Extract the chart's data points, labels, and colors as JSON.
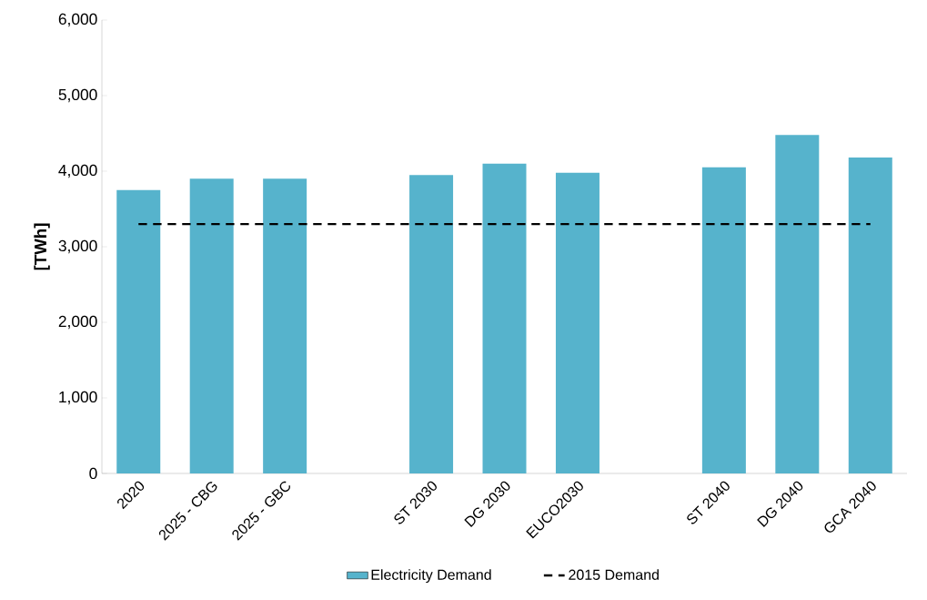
{
  "chart_data": {
    "type": "bar",
    "ylabel": "[TWh]",
    "categories": [
      "2020",
      "2025 - CBG",
      "2025 - GBC",
      null,
      "ST 2030",
      "DG 2030",
      "EUCO2030",
      null,
      "ST 2040",
      "DG 2040",
      "GCA 2040"
    ],
    "series": [
      {
        "name": "Electricity Demand",
        "color": "#56b3cc",
        "values": [
          3750,
          3900,
          3900,
          null,
          3950,
          4100,
          3980,
          null,
          4050,
          4480,
          4180
        ]
      },
      {
        "name": "2015 Demand",
        "type": "line",
        "color": "#000000",
        "line_style": "dashed",
        "values": [
          3300,
          3300,
          3300,
          3300,
          3300,
          3300,
          3300,
          3300,
          3300,
          3300,
          3300
        ]
      }
    ],
    "ylim": [
      0,
      6000
    ],
    "yticks": [
      0,
      {
        "value": 1000,
        "label": "1,000"
      },
      {
        "value": 2000,
        "label": "2,000"
      },
      {
        "value": 3000,
        "label": "3,000"
      },
      {
        "value": 4000,
        "label": "4,000"
      },
      {
        "value": 5000,
        "label": "5,000"
      },
      {
        "value": 6000,
        "label": "6,000"
      }
    ],
    "grid": false,
    "legend": "bottom"
  }
}
